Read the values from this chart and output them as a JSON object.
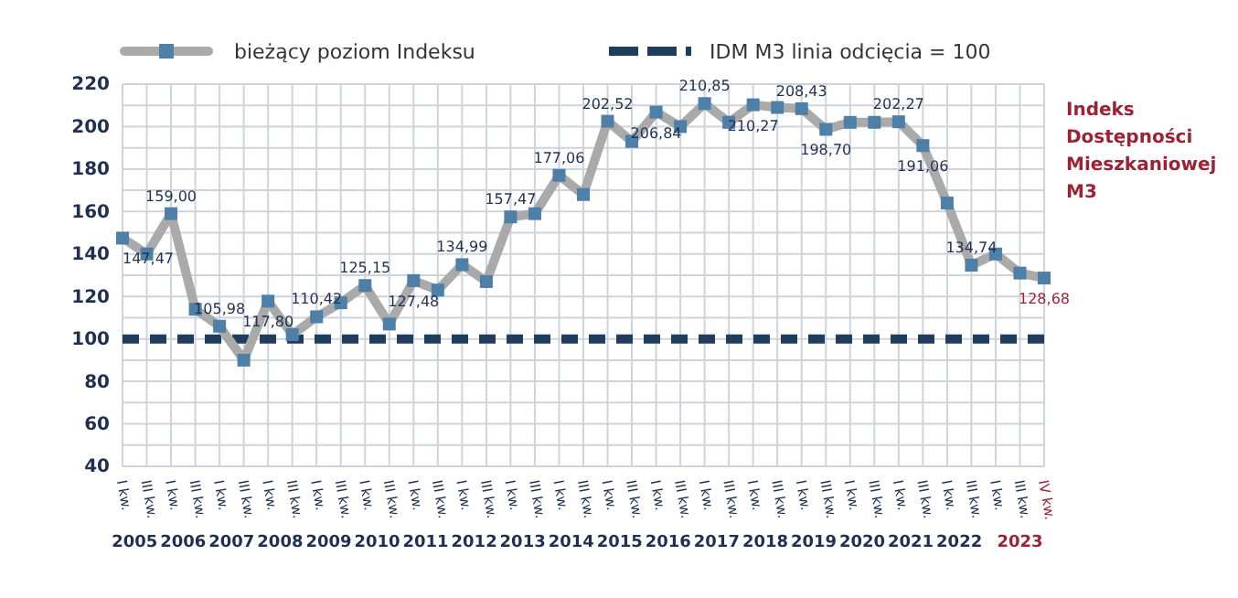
{
  "chart_data": {
    "type": "line",
    "title": "Indeks Dostępności Mieszkaniowej M3",
    "categories": [
      "I kw.",
      "III kw.",
      "I kw.",
      "III kw.",
      "I kw.",
      "III kw.",
      "I kw.",
      "III kw.",
      "I kw.",
      "III kw.",
      "I kw.",
      "III kw.",
      "I kw.",
      "III kw.",
      "I kw.",
      "III kw.",
      "I kw.",
      "III kw.",
      "I kw.",
      "III kw.",
      "I kw.",
      "III kw.",
      "I kw.",
      "III kw.",
      "I kw.",
      "III kw.",
      "I kw.",
      "III kw.",
      "I kw.",
      "III kw.",
      "I kw.",
      "III kw.",
      "I kw.",
      "III kw.",
      "I kw.",
      "III kw.",
      "I kw.",
      "III kw.",
      "IV kw."
    ],
    "annotations": [
      "2005",
      "2006",
      "2007",
      "2008",
      "2009",
      "2010",
      "2011",
      "2012",
      "2013",
      "2014",
      "2015",
      "2016",
      "2017",
      "2018",
      "2019",
      "2020",
      "2021",
      "2022",
      "2023"
    ],
    "series": [
      {
        "name": "bieżący poziom Indeksu",
        "color": "#aaaaaa",
        "values": [
          147.47,
          140,
          159.0,
          114,
          105.98,
          90,
          117.8,
          102,
          110.42,
          117,
          125.15,
          107,
          127.48,
          123,
          134.99,
          127,
          157.47,
          159,
          177.06,
          168,
          202.52,
          193,
          206.84,
          200,
          210.85,
          202,
          210.27,
          209,
          208.43,
          198.7,
          202,
          202,
          202.27,
          191.06,
          164,
          134.74,
          140,
          131,
          128.68
        ],
        "value_labels": [
          "147,47",
          null,
          "159,00",
          null,
          "105,98",
          null,
          "117,80",
          null,
          "110,42",
          null,
          "125,15",
          null,
          "127,48",
          null,
          "134,99",
          null,
          "157,47",
          null,
          "177,06",
          null,
          "202,52",
          null,
          "206,84",
          null,
          "210,85",
          null,
          "210,27",
          null,
          "208,43",
          "198,70",
          null,
          null,
          "202,27",
          "191,06",
          null,
          "134,74",
          null,
          null,
          "128,68"
        ]
      }
    ],
    "ref_lines": [
      {
        "axis": "y",
        "value": 100,
        "label": "IDM M3 linia odcięcia = 100",
        "color": "#1f3d5c",
        "line_style": "dashed"
      }
    ],
    "ylim": [
      40,
      220
    ],
    "yticks": [
      40,
      60,
      80,
      100,
      120,
      140,
      160,
      180,
      200,
      220
    ],
    "grid": true,
    "legend": "top",
    "marker": "square",
    "line_style": "solid"
  }
}
